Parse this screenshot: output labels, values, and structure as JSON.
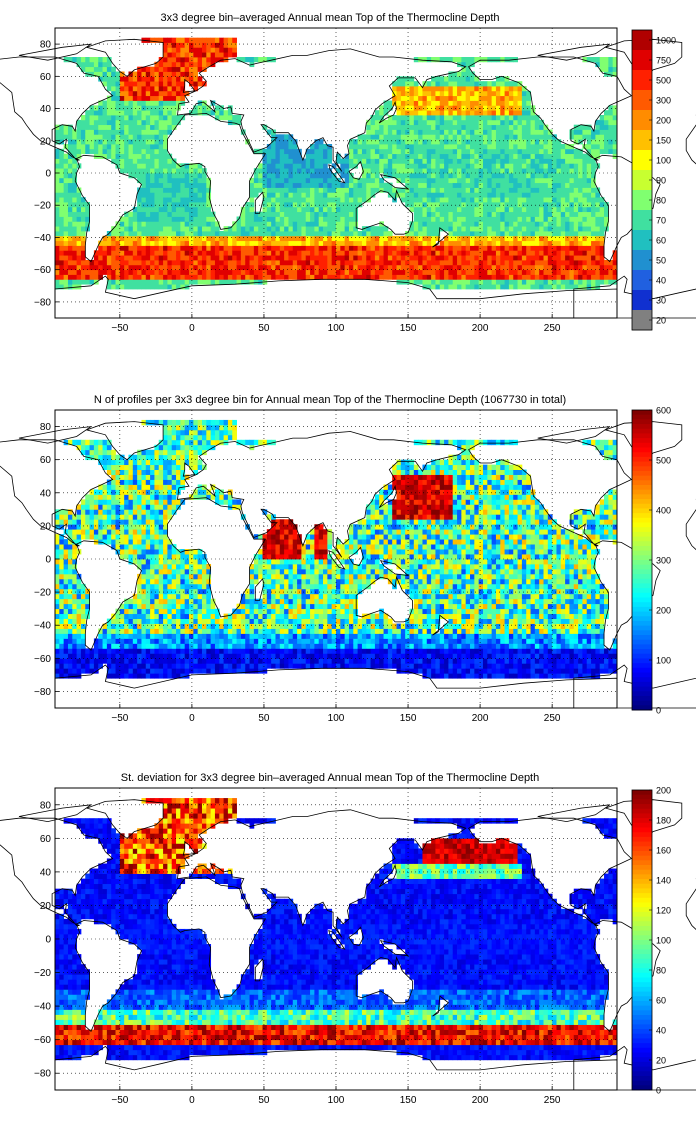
{
  "panels": [
    {
      "title": "3x3 degree bin–averaged Annual mean Top of the Thermocline Depth",
      "x_ticks": [
        "−50",
        "0",
        "50",
        "100",
        "150",
        "200",
        "250"
      ],
      "y_ticks": [
        "80",
        "60",
        "40",
        "20",
        "0",
        "−20",
        "−40",
        "−60",
        "−80"
      ],
      "colorbar_ticks": [
        "1000",
        "750",
        "500",
        "300",
        "200",
        "150",
        "100",
        "90",
        "80",
        "70",
        "60",
        "50",
        "40",
        "30",
        "20"
      ],
      "colorbar_colors": [
        "#b00000",
        "#e00000",
        "#ff2000",
        "#ff5a00",
        "#ff8c00",
        "#ffc000",
        "#ffff00",
        "#c8ff30",
        "#80ff70",
        "#40e0a0",
        "#20c0c0",
        "#2090d0",
        "#2060e0",
        "#1030d0",
        "#808080"
      ]
    },
    {
      "title": "N of profiles per 3x3 degree bin for Annual mean Top of the Thermocline Depth  (1067730 in total)",
      "x_ticks": [
        "−50",
        "0",
        "50",
        "100",
        "150",
        "200",
        "250"
      ],
      "y_ticks": [
        "80",
        "60",
        "40",
        "20",
        "0",
        "−20",
        "−40",
        "−60",
        "−80"
      ],
      "colorbar_ticks": [
        "600",
        "500",
        "400",
        "300",
        "200",
        "100",
        "0"
      ],
      "colorbar_range": [
        0,
        600
      ]
    },
    {
      "title": "St. deviation for 3x3 degree bin–averaged Annual mean Top of the Thermocline Depth",
      "x_ticks": [
        "−50",
        "0",
        "50",
        "100",
        "150",
        "200",
        "250"
      ],
      "y_ticks": [
        "80",
        "60",
        "40",
        "20",
        "0",
        "−20",
        "−40",
        "−60",
        "−80"
      ],
      "colorbar_ticks": [
        "200",
        "180",
        "160",
        "140",
        "120",
        "100",
        "80",
        "60",
        "40",
        "20",
        "0"
      ],
      "colorbar_range": [
        0,
        200
      ]
    }
  ],
  "map_extent": {
    "lon": [
      -95,
      295
    ],
    "lat": [
      -90,
      90
    ]
  },
  "colormap": "jet"
}
